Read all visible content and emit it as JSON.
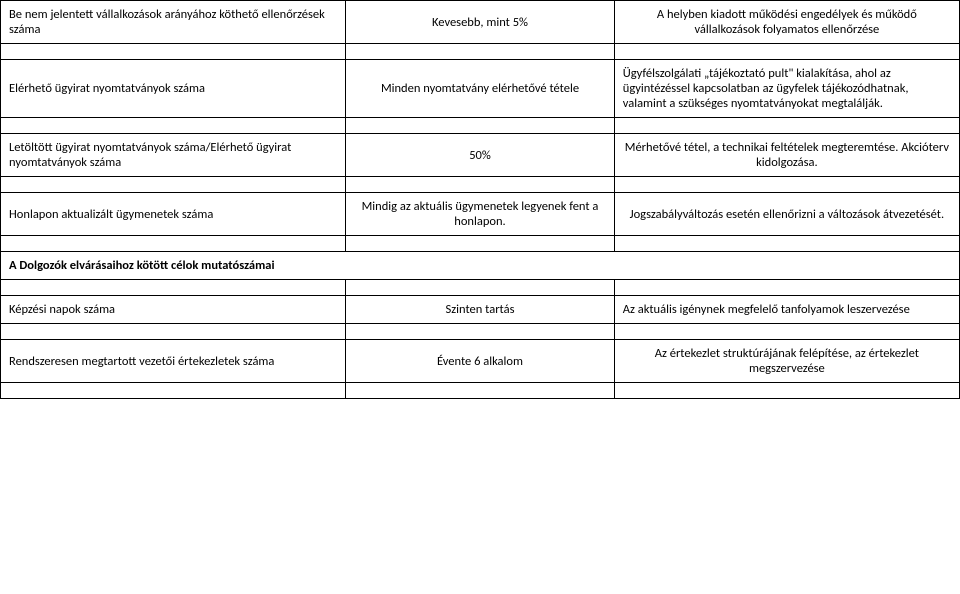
{
  "rows": {
    "r0": {
      "c1": "Be nem jelentett vállalkozások arányához köthető ellenőrzések száma",
      "c2": "Kevesebb, mint 5%",
      "c3": "A helyben kiadott működési engedélyek és működő vállalkozások folyamatos ellenőrzése"
    },
    "r1": {
      "c1": "Elérhető ügyirat nyomtatványok száma",
      "c2": "Minden nyomtatvány elérhetővé tétele",
      "c3": "Ügyfélszolgálati „tájékoztató pult\" kialakítása, ahol az ügyintézéssel kapcsolatban az ügyfelek tájékozódhatnak, valamint a szükséges nyomtatványokat megtalálják."
    },
    "r2": {
      "c1": "Letöltött ügyirat nyomtatványok száma/Elérhető ügyirat nyomtatványok száma",
      "c2": "50%",
      "c3": "Mérhetővé tétel, a technikai feltételek megteremtése. Akcióterv kidolgozása."
    },
    "r3": {
      "c1": "Honlapon aktualizált ügymenetek száma",
      "c2": "Mindig az aktuális ügymenetek legyenek fent a honlapon.",
      "c3": "Jogszabályváltozás esetén ellenőrizni a változások átvezetését."
    },
    "section": "A Dolgozók elvárásaihoz kötött célok mutatószámai",
    "r4": {
      "c1": "Képzési napok száma",
      "c2": "Szinten tartás",
      "c3": "Az aktuális igénynek megfelelő tanfolyamok leszervezése"
    },
    "r5": {
      "c1": "Rendszeresen megtartott vezetői értekezletek száma",
      "c2": "Évente 6 alkalom",
      "c3": "Az értekezlet struktúrájának felépítése, az értekezlet megszervezése"
    }
  }
}
